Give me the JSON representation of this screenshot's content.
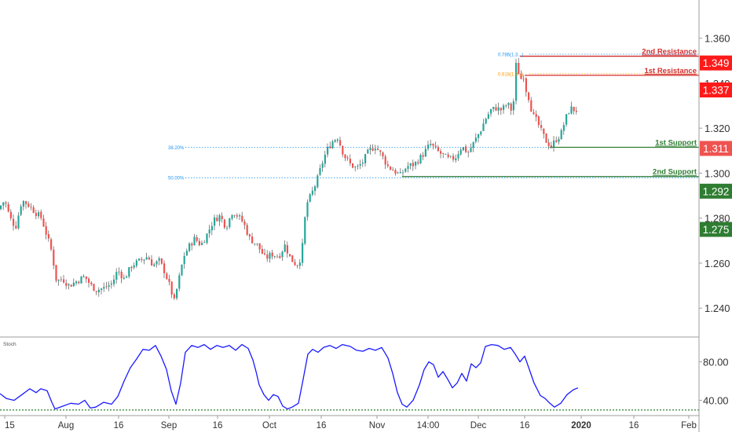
{
  "chart_data": [
    {
      "type": "candlestick",
      "title": "",
      "y_axis": {
        "ticks": [
          1.24,
          1.26,
          1.28,
          1.3,
          1.32,
          1.34,
          1.36
        ],
        "tick_labels": [
          "1.240",
          "1.260",
          "1.280",
          "1.300",
          "1.320",
          "1.340",
          "1.360"
        ],
        "ylim": [
          1.2275,
          1.377
        ]
      },
      "x_axis": {
        "tick_labels": [
          "15",
          "Aug",
          "16",
          "Sep",
          "16",
          "Oct",
          "16",
          "Nov",
          "14:00",
          "Dec",
          "16",
          "2020",
          "16",
          "Feb"
        ],
        "bold_labels": [
          "2020"
        ]
      },
      "price_tags": [
        {
          "label": "1.349",
          "value": 1.349,
          "color": "#ff1a1a"
        },
        {
          "label": "1.337",
          "value": 1.337,
          "color": "#ff1a1a"
        },
        {
          "label": "1.311",
          "value": 1.311,
          "color": "#ef5350"
        },
        {
          "label": "1.292",
          "value": 1.292,
          "color": "#2e7d32"
        },
        {
          "label": "1.275",
          "value": 1.275,
          "color": "#2e7d32"
        }
      ],
      "levels": [
        {
          "label": "2nd Resistance",
          "value": 1.352,
          "color": "#d32f2f"
        },
        {
          "label": "1st Resistance",
          "value": 1.3435,
          "color": "#d32f2f"
        },
        {
          "label": "1st Support",
          "value": 1.3115,
          "color": "#2e7d32"
        },
        {
          "label": "2nd Support",
          "value": 1.2985,
          "color": "#2e7d32"
        }
      ],
      "fib_levels": [
        {
          "label": "0.786(1.3...)",
          "value": 1.3529,
          "color": "#2196f3"
        },
        {
          "label": "0.618(1.3...)",
          "value": 1.3442,
          "color": "#ff9800"
        },
        {
          "label": "38.20%",
          "value": 1.3115,
          "color": "#2196f3"
        },
        {
          "label": "50.00%",
          "value": 1.298,
          "color": "#2196f3"
        }
      ],
      "candle_colors": {
        "up": "#26a69a",
        "down": "#ef5350",
        "wick": "#555555"
      },
      "price_path": [
        [
          0,
          1.284
        ],
        [
          8,
          1.288
        ],
        [
          15,
          1.28
        ],
        [
          22,
          1.276
        ],
        [
          30,
          1.288
        ],
        [
          38,
          1.286
        ],
        [
          46,
          1.283
        ],
        [
          55,
          1.28
        ],
        [
          62,
          1.272
        ],
        [
          68,
          1.265
        ],
        [
          74,
          1.252
        ],
        [
          82,
          1.253
        ],
        [
          90,
          1.25
        ],
        [
          100,
          1.252
        ],
        [
          110,
          1.254
        ],
        [
          118,
          1.25
        ],
        [
          125,
          1.248
        ],
        [
          135,
          1.249
        ],
        [
          145,
          1.251
        ],
        [
          152,
          1.257
        ],
        [
          160,
          1.253
        ],
        [
          170,
          1.259
        ],
        [
          180,
          1.261
        ],
        [
          190,
          1.263
        ],
        [
          197,
          1.259
        ],
        [
          205,
          1.261
        ],
        [
          212,
          1.256
        ],
        [
          218,
          1.25
        ],
        [
          224,
          1.243
        ],
        [
          230,
          1.253
        ],
        [
          236,
          1.263
        ],
        [
          242,
          1.267
        ],
        [
          250,
          1.271
        ],
        [
          258,
          1.268
        ],
        [
          266,
          1.273
        ],
        [
          274,
          1.279
        ],
        [
          282,
          1.281
        ],
        [
          290,
          1.276
        ],
        [
          298,
          1.283
        ],
        [
          305,
          1.281
        ],
        [
          312,
          1.278
        ],
        [
          320,
          1.271
        ],
        [
          330,
          1.268
        ],
        [
          340,
          1.262
        ],
        [
          348,
          1.264
        ],
        [
          357,
          1.263
        ],
        [
          365,
          1.268
        ],
        [
          372,
          1.262
        ],
        [
          380,
          1.259
        ],
        [
          386,
          1.263
        ],
        [
          392,
          1.286
        ],
        [
          398,
          1.29
        ],
        [
          405,
          1.296
        ],
        [
          412,
          1.304
        ],
        [
          418,
          1.31
        ],
        [
          425,
          1.314
        ],
        [
          432,
          1.316
        ],
        [
          440,
          1.308
        ],
        [
          448,
          1.304
        ],
        [
          456,
          1.302
        ],
        [
          464,
          1.305
        ],
        [
          472,
          1.31
        ],
        [
          480,
          1.312
        ],
        [
          488,
          1.308
        ],
        [
          496,
          1.303
        ],
        [
          504,
          1.301
        ],
        [
          512,
          1.299
        ],
        [
          520,
          1.303
        ],
        [
          530,
          1.304
        ],
        [
          540,
          1.308
        ],
        [
          550,
          1.313
        ],
        [
          558,
          1.31
        ],
        [
          566,
          1.308
        ],
        [
          574,
          1.306
        ],
        [
          582,
          1.307
        ],
        [
          590,
          1.312
        ],
        [
          598,
          1.309
        ],
        [
          606,
          1.314
        ],
        [
          614,
          1.319
        ],
        [
          620,
          1.324
        ],
        [
          627,
          1.328
        ],
        [
          634,
          1.329
        ],
        [
          641,
          1.328
        ],
        [
          648,
          1.331
        ],
        [
          655,
          1.327
        ],
        [
          660,
          1.352
        ],
        [
          664,
          1.34
        ],
        [
          668,
          1.345
        ],
        [
          672,
          1.337
        ],
        [
          676,
          1.333
        ],
        [
          680,
          1.326
        ],
        [
          686,
          1.323
        ],
        [
          692,
          1.318
        ],
        [
          698,
          1.314
        ],
        [
          704,
          1.312
        ],
        [
          710,
          1.315
        ],
        [
          716,
          1.317
        ],
        [
          722,
          1.324
        ],
        [
          728,
          1.329
        ],
        [
          734,
          1.328
        ]
      ]
    },
    {
      "type": "line",
      "title": "Stoch",
      "y_axis": {
        "ticks": [
          40,
          80
        ],
        "tick_labels": [
          "40.00",
          "80.00"
        ],
        "ylim": [
          25,
          105
        ]
      },
      "reference_line": {
        "value": 30,
        "color": "#2e7d32"
      },
      "series": [
        {
          "color": "#1a1aff",
          "points": [
            [
              0,
              47
            ],
            [
              8,
              42
            ],
            [
              18,
              40
            ],
            [
              28,
              46
            ],
            [
              38,
              52
            ],
            [
              46,
              48
            ],
            [
              52,
              52
            ],
            [
              60,
              50
            ],
            [
              66,
              38
            ],
            [
              70,
              31
            ],
            [
              80,
              34
            ],
            [
              90,
              37
            ],
            [
              100,
              36
            ],
            [
              108,
              40
            ],
            [
              115,
              32
            ],
            [
              122,
              33
            ],
            [
              132,
              38
            ],
            [
              142,
              36
            ],
            [
              150,
              44
            ],
            [
              158,
              60
            ],
            [
              166,
              74
            ],
            [
              174,
              83
            ],
            [
              182,
              93
            ],
            [
              190,
              92
            ],
            [
              198,
              97
            ],
            [
              205,
              86
            ],
            [
              212,
              72
            ],
            [
              218,
              50
            ],
            [
              224,
              36
            ],
            [
              230,
              58
            ],
            [
              236,
              90
            ],
            [
              244,
              97
            ],
            [
              252,
              95
            ],
            [
              260,
              98
            ],
            [
              268,
              93
            ],
            [
              276,
              97
            ],
            [
              284,
              95
            ],
            [
              292,
              97
            ],
            [
              300,
              92
            ],
            [
              308,
              98
            ],
            [
              316,
              94
            ],
            [
              322,
              82
            ],
            [
              326,
              70
            ],
            [
              330,
              56
            ],
            [
              336,
              46
            ],
            [
              342,
              40
            ],
            [
              348,
              46
            ],
            [
              354,
              44
            ],
            [
              360,
              34
            ],
            [
              366,
              31
            ],
            [
              372,
              33
            ],
            [
              380,
              37
            ],
            [
              386,
              62
            ],
            [
              392,
              88
            ],
            [
              398,
              93
            ],
            [
              405,
              90
            ],
            [
              412,
              95
            ],
            [
              420,
              97
            ],
            [
              428,
              94
            ],
            [
              436,
              98
            ],
            [
              446,
              96
            ],
            [
              454,
              92
            ],
            [
              462,
              91
            ],
            [
              470,
              94
            ],
            [
              478,
              92
            ],
            [
              486,
              95
            ],
            [
              494,
              84
            ],
            [
              500,
              68
            ],
            [
              506,
              48
            ],
            [
              512,
              36
            ],
            [
              518,
              33
            ],
            [
              526,
              40
            ],
            [
              534,
              56
            ],
            [
              540,
              72
            ],
            [
              546,
              80
            ],
            [
              552,
              77
            ],
            [
              558,
              64
            ],
            [
              564,
              70
            ],
            [
              570,
              62
            ],
            [
              576,
              53
            ],
            [
              582,
              58
            ],
            [
              588,
              68
            ],
            [
              594,
              60
            ],
            [
              600,
              78
            ],
            [
              606,
              74
            ],
            [
              612,
              79
            ],
            [
              618,
              96
            ],
            [
              626,
              98
            ],
            [
              634,
              97
            ],
            [
              642,
              93
            ],
            [
              650,
              95
            ],
            [
              656,
              88
            ],
            [
              662,
              80
            ],
            [
              668,
              86
            ],
            [
              674,
              72
            ],
            [
              680,
              58
            ],
            [
              688,
              45
            ],
            [
              694,
              42
            ],
            [
              700,
              37
            ],
            [
              706,
              33
            ],
            [
              714,
              37
            ],
            [
              722,
              46
            ],
            [
              730,
              51
            ],
            [
              736,
              53
            ]
          ]
        }
      ]
    }
  ]
}
